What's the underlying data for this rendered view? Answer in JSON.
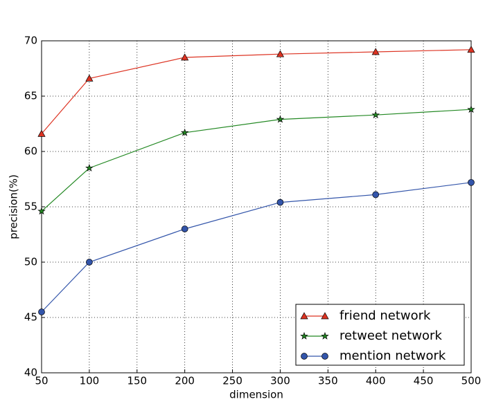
{
  "chart_data": {
    "type": "line",
    "xlabel": "dimension",
    "ylabel": "precision(%)",
    "x": [
      50,
      100,
      200,
      300,
      400,
      500
    ],
    "series": [
      {
        "name": "friend network",
        "color": "#dd3322",
        "marker": "triangle",
        "values": [
          61.6,
          66.6,
          68.5,
          68.8,
          69.0,
          69.2
        ]
      },
      {
        "name": "retweet network",
        "color": "#228822",
        "marker": "star",
        "values": [
          54.6,
          58.5,
          61.7,
          62.9,
          63.3,
          63.8
        ]
      },
      {
        "name": "mention network",
        "color": "#3355aa",
        "marker": "circle",
        "values": [
          45.5,
          50.0,
          53.0,
          55.4,
          56.1,
          57.2
        ]
      }
    ],
    "xlim": [
      50,
      500
    ],
    "xticks": [
      50,
      100,
      150,
      200,
      250,
      300,
      350,
      400,
      450,
      500
    ],
    "ylim": [
      40,
      70
    ],
    "yticks": [
      40,
      45,
      50,
      55,
      60,
      65,
      70
    ],
    "grid": true,
    "legend": "lower right"
  }
}
